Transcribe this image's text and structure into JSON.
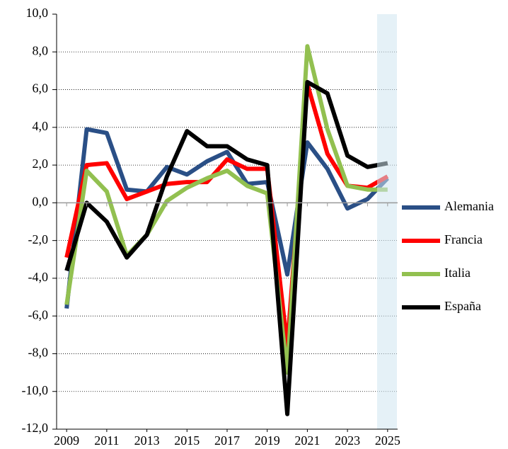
{
  "chart_data": {
    "type": "line",
    "x": [
      2009,
      2010,
      2011,
      2012,
      2013,
      2014,
      2015,
      2016,
      2017,
      2018,
      2019,
      2020,
      2021,
      2022,
      2023,
      2024,
      2025
    ],
    "xlim": [
      2008.5,
      2025.5
    ],
    "xticks": [
      2009,
      2011,
      2013,
      2015,
      2017,
      2019,
      2021,
      2023,
      2025
    ],
    "ylim": [
      -12,
      10
    ],
    "yticks": [
      {
        "value": -12,
        "label": "-12,0"
      },
      {
        "value": -10,
        "label": "-10,0"
      },
      {
        "value": -8,
        "label": "-8,0"
      },
      {
        "value": -6,
        "label": "-6,0"
      },
      {
        "value": -4,
        "label": "-4,0"
      },
      {
        "value": -2,
        "label": "-2,0"
      },
      {
        "value": 0,
        "label": "0,0"
      },
      {
        "value": 2,
        "label": "2,0"
      },
      {
        "value": 4,
        "label": "4,0"
      },
      {
        "value": 6,
        "label": "6,0"
      },
      {
        "value": 8,
        "label": "8,0"
      },
      {
        "value": 10,
        "label": "10,0"
      }
    ],
    "grid": true,
    "legend": "right",
    "series": [
      {
        "name": "Alemania",
        "color": "#2a4f86",
        "values": [
          -5.6,
          3.9,
          3.7,
          0.7,
          0.6,
          1.9,
          1.5,
          2.2,
          2.7,
          1.0,
          1.1,
          -3.8,
          3.2,
          1.8,
          -0.3,
          0.2,
          1.3
        ]
      },
      {
        "name": "Francia",
        "color": "#ff0000",
        "values": [
          -2.9,
          2.0,
          2.1,
          0.2,
          0.6,
          1.0,
          1.1,
          1.1,
          2.3,
          1.8,
          1.8,
          -7.6,
          6.3,
          2.6,
          0.9,
          0.8,
          1.4
        ]
      },
      {
        "name": "Italia",
        "color": "#92c050",
        "values": [
          -5.4,
          1.7,
          0.6,
          -2.8,
          -1.7,
          0.1,
          0.8,
          1.3,
          1.7,
          0.9,
          0.5,
          -9.0,
          8.3,
          3.9,
          0.9,
          0.7,
          0.7
        ]
      },
      {
        "name": "España",
        "color": "#000000",
        "values": [
          -3.6,
          0.0,
          -1.0,
          -2.9,
          -1.7,
          1.4,
          3.8,
          3.0,
          3.0,
          2.3,
          2.0,
          -11.2,
          6.4,
          5.8,
          2.5,
          1.9,
          2.1
        ]
      }
    ]
  }
}
